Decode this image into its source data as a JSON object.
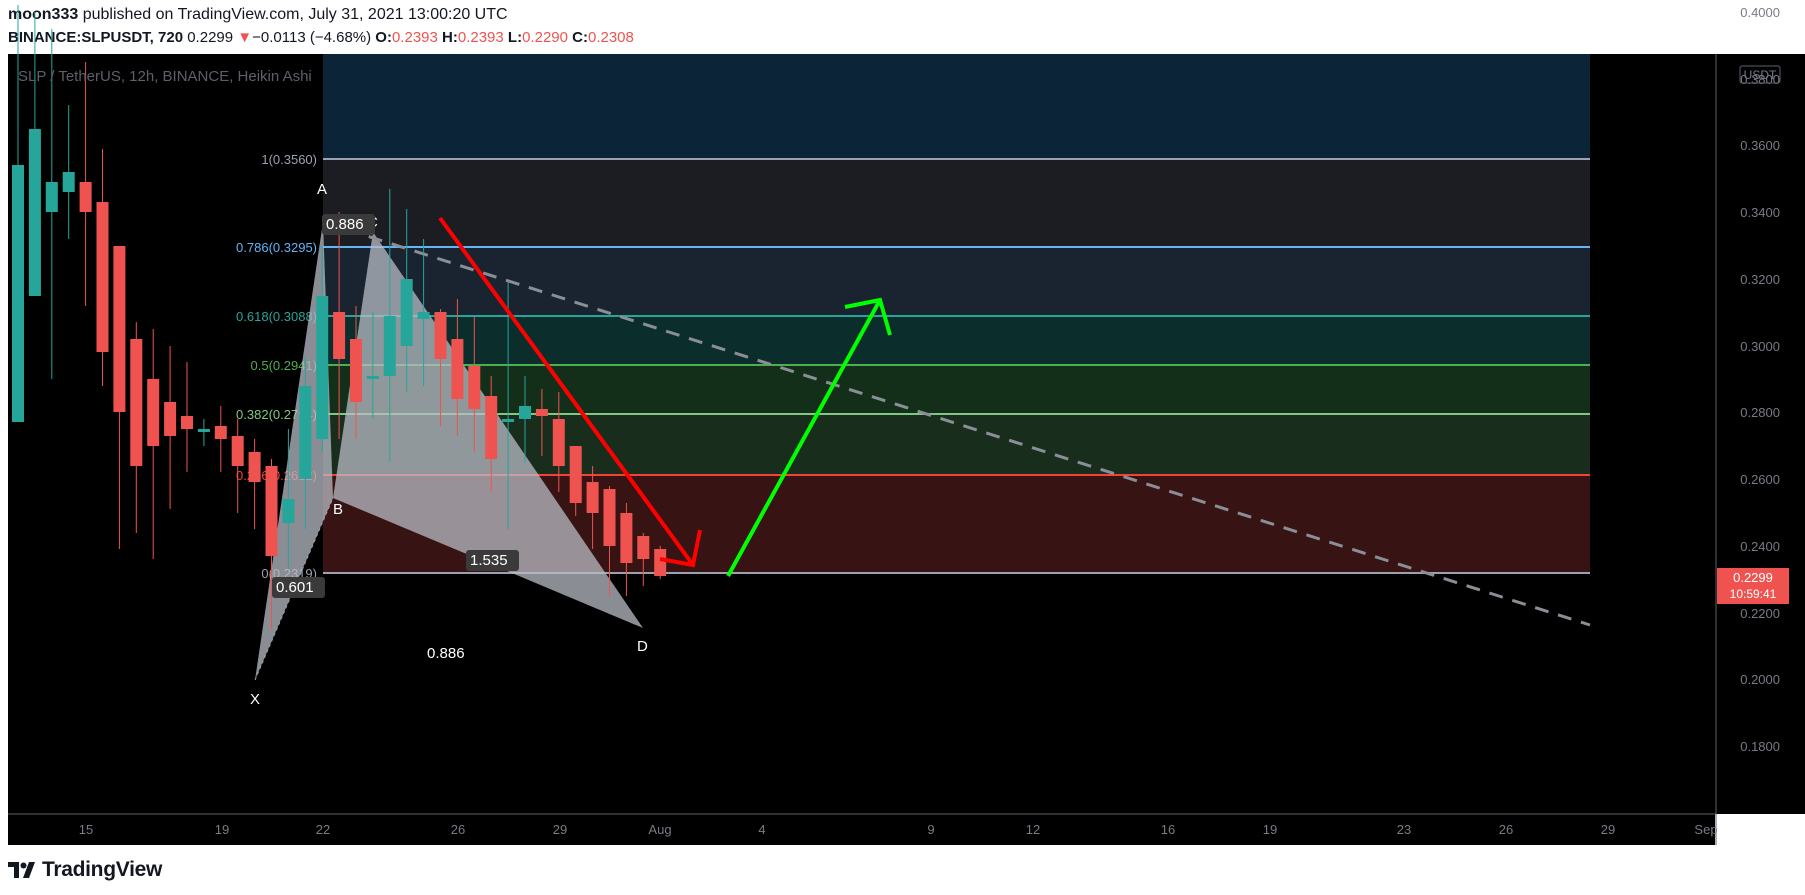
{
  "header": {
    "author": "moon333",
    "published_text": "published on TradingView.com, July 31, 2021 13:00:20 UTC",
    "symbol": "BINANCE:SLPUSDT, 720",
    "last": "0.2299",
    "change": "−0.0113 (−4.68%)",
    "o_label": "O:",
    "o": "0.2393",
    "h_label": "H:",
    "h": "0.2393",
    "l_label": "L:",
    "l": "0.2290",
    "c_label": "C:",
    "c": "0.2308"
  },
  "footer": {
    "brand": "TradingView",
    "logo_icon": "tradingview-logo-icon"
  },
  "chart_data": {
    "type": "candlestick",
    "title": "SLP / TetherUS, 12h, BINANCE, Heikin Ashi",
    "currency_badge": "USDT",
    "ylim": [
      0.175,
      0.4
    ],
    "y_ticks": [
      "0.4000",
      "0.3800",
      "0.3600",
      "0.3400",
      "0.3200",
      "0.3000",
      "0.2800",
      "0.2600",
      "0.2400",
      "0.2200",
      "0.2000",
      "0.1800"
    ],
    "x_ticks": [
      "15",
      "19",
      "22",
      "26",
      "29",
      "Aug",
      "4",
      "9",
      "12",
      "16",
      "19",
      "23",
      "26",
      "29",
      "Sep"
    ],
    "price_label": {
      "value": "0.2299",
      "countdown": "10:59:41"
    },
    "colors": {
      "up": "#26a69a",
      "down": "#ef5350"
    },
    "candles": [
      {
        "o": 0.277,
        "c": 0.354,
        "h": 0.402,
        "l": 0.277
      },
      {
        "o": 0.315,
        "c": 0.365,
        "h": 0.4,
        "l": 0.315
      },
      {
        "o": 0.34,
        "c": 0.349,
        "h": 0.395,
        "l": 0.29
      },
      {
        "o": 0.346,
        "c": 0.352,
        "h": 0.372,
        "l": 0.332
      },
      {
        "o": 0.349,
        "c": 0.34,
        "h": 0.385,
        "l": 0.312
      },
      {
        "o": 0.343,
        "c": 0.298,
        "h": 0.359,
        "l": 0.288
      },
      {
        "o": 0.33,
        "c": 0.28,
        "h": 0.33,
        "l": 0.239
      },
      {
        "o": 0.302,
        "c": 0.264,
        "h": 0.307,
        "l": 0.244
      },
      {
        "o": 0.29,
        "c": 0.27,
        "h": 0.305,
        "l": 0.236
      },
      {
        "o": 0.283,
        "c": 0.273,
        "h": 0.3,
        "l": 0.251
      },
      {
        "o": 0.279,
        "c": 0.275,
        "h": 0.295,
        "l": 0.262
      },
      {
        "o": 0.274,
        "c": 0.275,
        "h": 0.278,
        "l": 0.27
      },
      {
        "o": 0.276,
        "c": 0.272,
        "h": 0.282,
        "l": 0.262
      },
      {
        "o": 0.273,
        "c": 0.264,
        "h": 0.278,
        "l": 0.25
      },
      {
        "o": 0.268,
        "c": 0.259,
        "h": 0.272,
        "l": 0.245
      },
      {
        "o": 0.264,
        "c": 0.237,
        "h": 0.266,
        "l": 0.215
      },
      {
        "o": 0.247,
        "c": 0.254,
        "h": 0.275,
        "l": 0.233
      },
      {
        "o": 0.26,
        "c": 0.288,
        "h": 0.297,
        "l": 0.245
      },
      {
        "o": 0.272,
        "c": 0.315,
        "h": 0.33,
        "l": 0.268
      },
      {
        "o": 0.31,
        "c": 0.296,
        "h": 0.34,
        "l": 0.272
      },
      {
        "o": 0.302,
        "c": 0.283,
        "h": 0.312,
        "l": 0.272
      },
      {
        "o": 0.29,
        "c": 0.291,
        "h": 0.31,
        "l": 0.278
      },
      {
        "o": 0.291,
        "c": 0.309,
        "h": 0.347,
        "l": 0.265
      },
      {
        "o": 0.3,
        "c": 0.32,
        "h": 0.341,
        "l": 0.286
      },
      {
        "o": 0.308,
        "c": 0.31,
        "h": 0.332,
        "l": 0.288
      },
      {
        "o": 0.31,
        "c": 0.296,
        "h": 0.311,
        "l": 0.276
      },
      {
        "o": 0.302,
        "c": 0.284,
        "h": 0.314,
        "l": 0.273
      },
      {
        "o": 0.294,
        "c": 0.281,
        "h": 0.309,
        "l": 0.268
      },
      {
        "o": 0.285,
        "c": 0.266,
        "h": 0.291,
        "l": 0.256
      },
      {
        "o": 0.277,
        "c": 0.278,
        "h": 0.319,
        "l": 0.245
      },
      {
        "o": 0.278,
        "c": 0.282,
        "h": 0.291,
        "l": 0.265
      },
      {
        "o": 0.281,
        "c": 0.279,
        "h": 0.287,
        "l": 0.267
      },
      {
        "o": 0.278,
        "c": 0.264,
        "h": 0.286,
        "l": 0.256
      },
      {
        "o": 0.27,
        "c": 0.253,
        "h": 0.27,
        "l": 0.249
      },
      {
        "o": 0.259,
        "c": 0.25,
        "h": 0.264,
        "l": 0.239
      },
      {
        "o": 0.257,
        "c": 0.24,
        "h": 0.258,
        "l": 0.225
      },
      {
        "o": 0.25,
        "c": 0.235,
        "h": 0.253,
        "l": 0.225
      },
      {
        "o": 0.243,
        "c": 0.236,
        "h": 0.244,
        "l": 0.228
      },
      {
        "o": 0.239,
        "c": 0.231,
        "h": 0.24,
        "l": 0.23
      }
    ],
    "fib_levels": [
      {
        "label": "1(0.3560)",
        "value": 0.356,
        "color": "#9ba1b0"
      },
      {
        "label": "0.786(0.3295)",
        "value": 0.3295,
        "color": "#64b5f6"
      },
      {
        "label": "0.618(0.3088)",
        "value": 0.3088,
        "color": "#26a69a"
      },
      {
        "label": "0.5(0.2941)",
        "value": 0.2941,
        "color": "#4caf50"
      },
      {
        "label": "0.382(0.2794)",
        "value": 0.2794,
        "color": "#81c784"
      },
      {
        "label": "0.236(0.2612)",
        "value": 0.2612,
        "color": "#f44336"
      },
      {
        "label": "0(0.2319)",
        "value": 0.2319,
        "color": "#9ba1b0"
      }
    ],
    "pattern": {
      "points": {
        "X": "X",
        "A": "A",
        "B": "B",
        "C": "C",
        "D": "D"
      },
      "ratios": {
        "ab": "0.601",
        "bc": "0.886",
        "cd": "1.535",
        "xd": "0.886"
      }
    }
  }
}
